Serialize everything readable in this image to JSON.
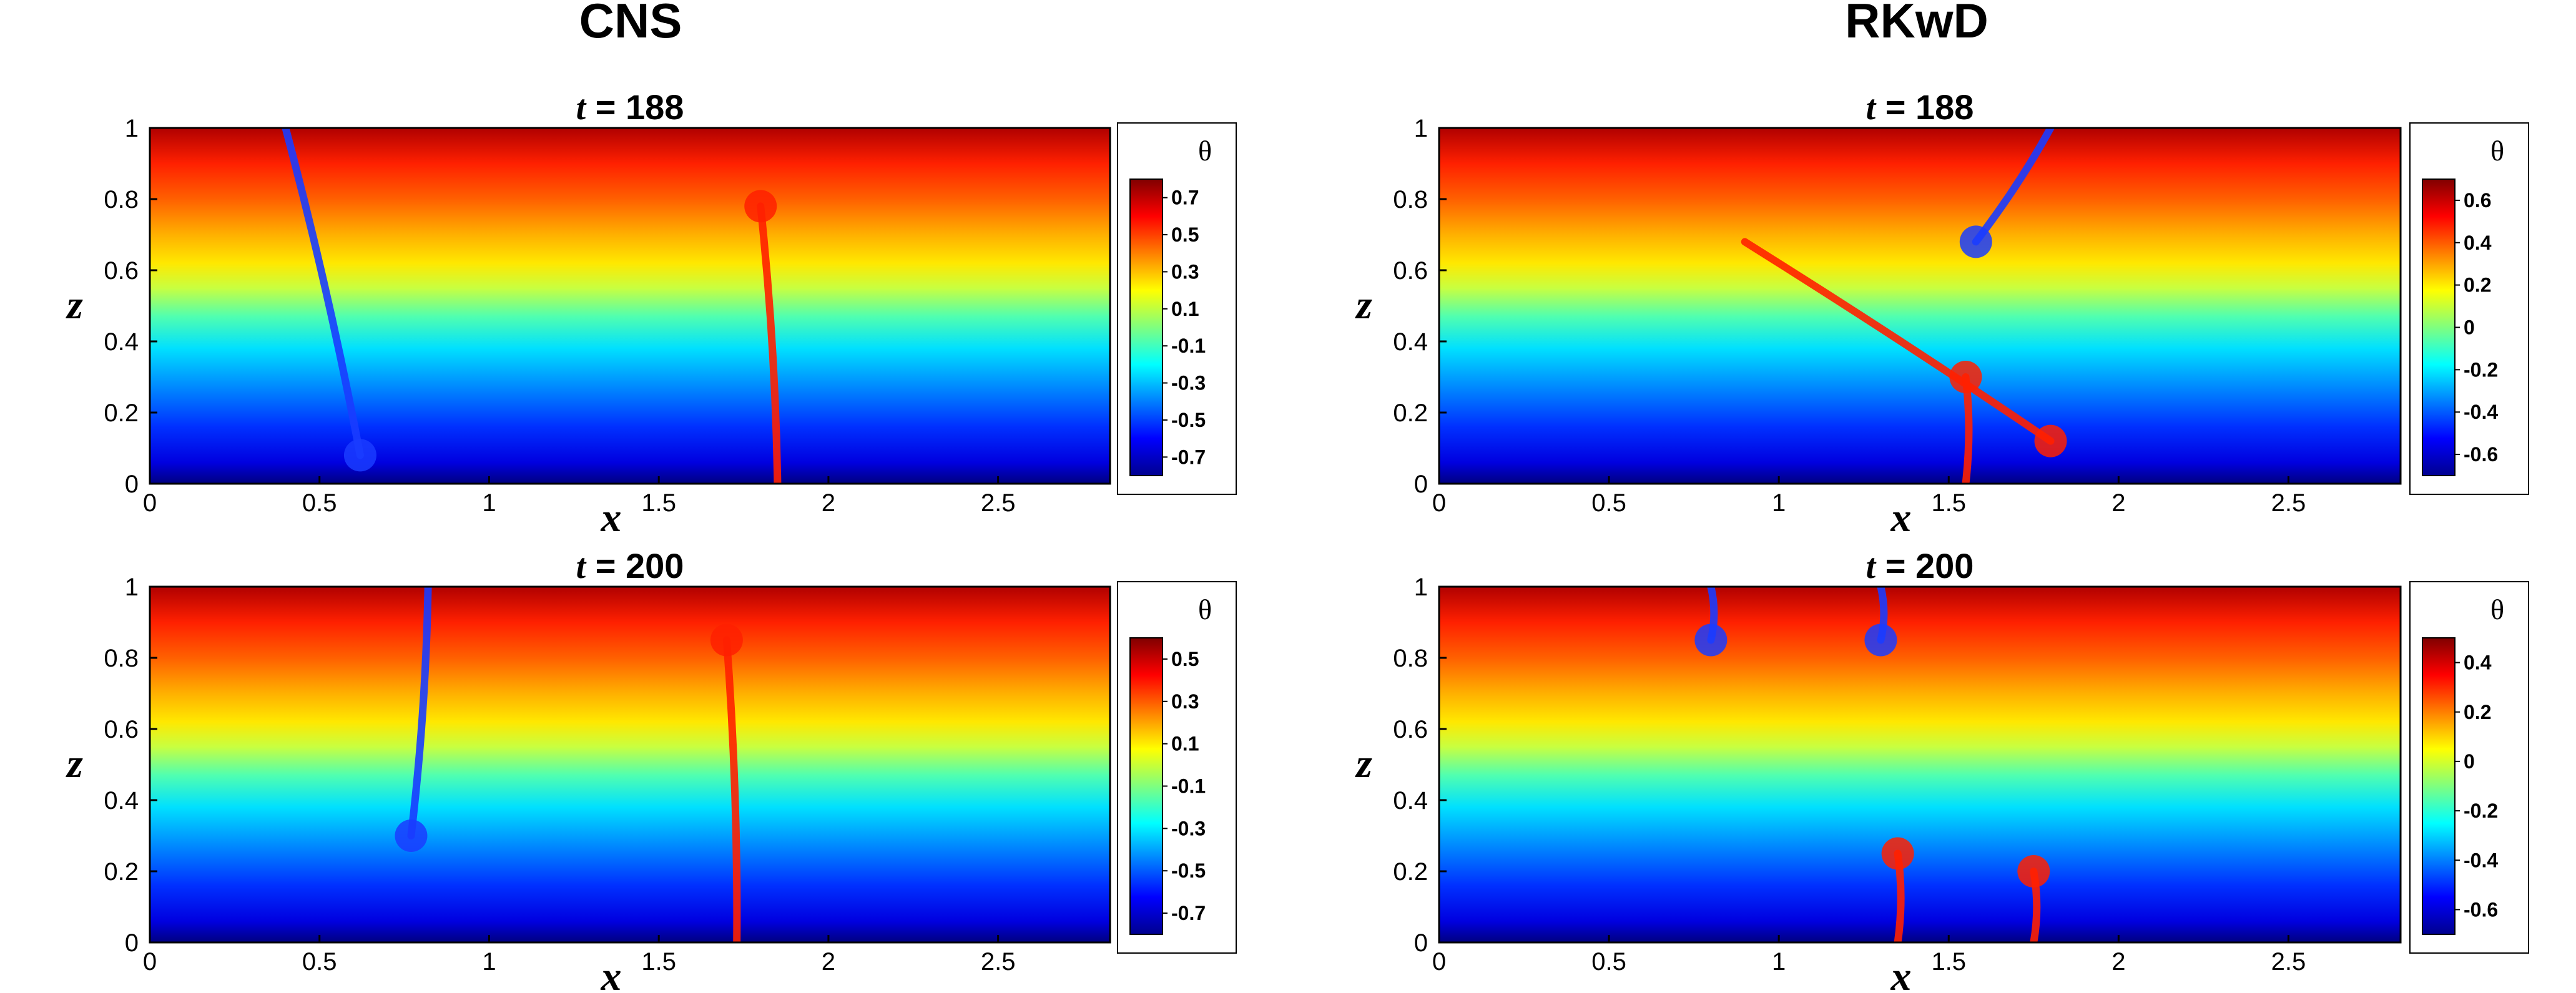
{
  "column_titles": [
    "CNS",
    "RKwD"
  ],
  "chart_data": [
    {
      "type": "heatmap",
      "column": "CNS",
      "title_var": "t",
      "title_eq": " = ",
      "title_value": "188",
      "xlabel": "x",
      "ylabel": "z",
      "xlim": [
        0,
        2.83
      ],
      "ylim": [
        0,
        1
      ],
      "xticks": [
        "0",
        "0.5",
        "1",
        "1.5",
        "2",
        "2.5"
      ],
      "yticks": [
        "0",
        "0.2",
        "0.4",
        "0.6",
        "0.8",
        "1"
      ],
      "colorbar": {
        "title": "θ",
        "labels": [
          "0.7",
          "0.5",
          "0.3",
          "0.1",
          "-0.1",
          "-0.3",
          "-0.5",
          "-0.7"
        ],
        "range": [
          -0.8,
          0.8
        ]
      },
      "plumes": [
        {
          "kind": "cold",
          "x_top": 0.62,
          "x_bottom": 0.4,
          "z_from": 1.0,
          "z_to": 0.08
        },
        {
          "kind": "hot",
          "x_top": 1.8,
          "x_bottom": 1.85,
          "z_from": 0.0,
          "z_to": 0.78
        }
      ]
    },
    {
      "type": "heatmap",
      "column": "RKwD",
      "title_var": "t",
      "title_eq": " = ",
      "title_value": "188",
      "xlabel": "x",
      "ylabel": "z",
      "xlim": [
        0,
        2.83
      ],
      "ylim": [
        0,
        1
      ],
      "xticks": [
        "0",
        "0.5",
        "1",
        "1.5",
        "2",
        "2.5"
      ],
      "yticks": [
        "0",
        "0.2",
        "0.4",
        "0.6",
        "0.8",
        "1"
      ],
      "colorbar": {
        "title": "θ",
        "labels": [
          "0.6",
          "0.4",
          "0.2",
          "0",
          "-0.2",
          "-0.4",
          "-0.6"
        ],
        "range": [
          -0.7,
          0.7
        ]
      },
      "plumes": [
        {
          "kind": "cold",
          "x_top": 1.58,
          "x_bottom": 1.8,
          "z_from": 1.0,
          "z_to": 0.68
        },
        {
          "kind": "hot",
          "x_top": 1.8,
          "x_bottom": 0.9,
          "z_from": 0.68,
          "z_to": 0.12
        },
        {
          "kind": "hot",
          "x_top": 1.55,
          "x_bottom": 1.55,
          "z_from": 0.0,
          "z_to": 0.3
        }
      ]
    },
    {
      "type": "heatmap",
      "column": "CNS",
      "title_var": "t",
      "title_eq": " = ",
      "title_value": "200",
      "xlabel": "x",
      "ylabel": "z",
      "xlim": [
        0,
        2.83
      ],
      "ylim": [
        0,
        1
      ],
      "xticks": [
        "0",
        "0.5",
        "1",
        "1.5",
        "2",
        "2.5"
      ],
      "yticks": [
        "0",
        "0.2",
        "0.4",
        "0.6",
        "0.8",
        "1"
      ],
      "colorbar": {
        "title": "θ",
        "labels": [
          "0.5",
          "0.3",
          "0.1",
          "-0.1",
          "-0.3",
          "-0.5",
          "-0.7"
        ],
        "range": [
          -0.8,
          0.6
        ]
      },
      "plumes": [
        {
          "kind": "cold",
          "x_top": 0.77,
          "x_bottom": 0.82,
          "z_from": 1.0,
          "z_to": 0.3
        },
        {
          "kind": "hot",
          "x_top": 1.7,
          "x_bottom": 1.73,
          "z_from": 0.0,
          "z_to": 0.85
        }
      ]
    },
    {
      "type": "heatmap",
      "column": "RKwD",
      "title_var": "t",
      "title_eq": " = ",
      "title_value": "200",
      "xlabel": "x",
      "ylabel": "z",
      "xlim": [
        0,
        2.83
      ],
      "ylim": [
        0,
        1
      ],
      "xticks": [
        "0",
        "0.5",
        "1",
        "1.5",
        "2",
        "2.5"
      ],
      "yticks": [
        "0",
        "0.2",
        "0.4",
        "0.6",
        "0.8",
        "1"
      ],
      "colorbar": {
        "title": "θ",
        "labels": [
          "0.4",
          "0.2",
          "0",
          "-0.2",
          "-0.4",
          "-0.6"
        ],
        "range": [
          -0.7,
          0.5
        ]
      },
      "plumes": [
        {
          "kind": "cold",
          "x_top": 0.8,
          "x_bottom": 0.8,
          "z_from": 1.0,
          "z_to": 0.85
        },
        {
          "kind": "cold",
          "x_top": 1.3,
          "x_bottom": 1.3,
          "z_from": 1.0,
          "z_to": 0.85
        },
        {
          "kind": "hot",
          "x_top": 1.35,
          "x_bottom": 1.35,
          "z_from": 0.0,
          "z_to": 0.25
        },
        {
          "kind": "hot",
          "x_top": 1.75,
          "x_bottom": 1.75,
          "z_from": 0.0,
          "z_to": 0.2
        }
      ]
    }
  ],
  "colormap": [
    "#00008f",
    "#0000ff",
    "#007fff",
    "#00ffff",
    "#7fff7f",
    "#ffff00",
    "#ff7f00",
    "#ff0000",
    "#800000"
  ],
  "colors": {
    "axis": "#000000",
    "frame": "#000000",
    "hot_plume": "#ff2000",
    "cold_plume": "#1a3cff"
  }
}
